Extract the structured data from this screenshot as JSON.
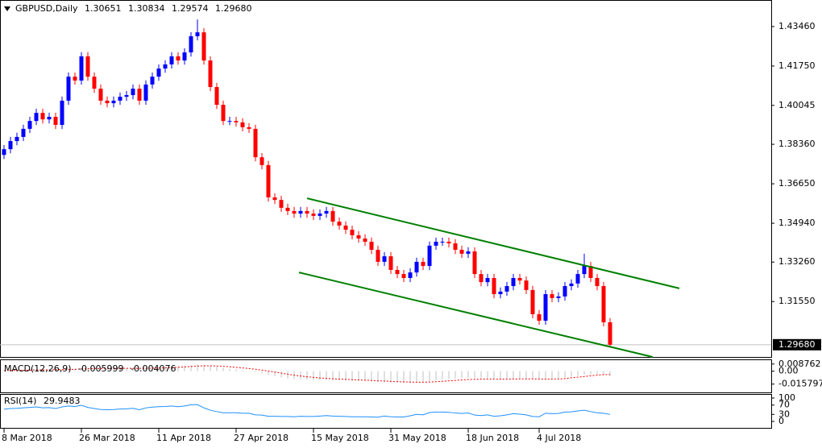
{
  "chart_data": [
    {
      "type": "candlestick",
      "title": "GBPUSD,Daily",
      "ohlc_label_close": "1.29680",
      "current_price": {
        "value": 1.2968,
        "label": "1.29680"
      },
      "up_color": "#0000ff",
      "down_color": "#ff0000",
      "categories": [
        "8 Mar 2018",
        null,
        null,
        null,
        null,
        null,
        null,
        null,
        null,
        null,
        null,
        null,
        "26 Mar 2018",
        null,
        null,
        null,
        null,
        null,
        null,
        null,
        null,
        null,
        null,
        null,
        "11 Apr 2018",
        null,
        null,
        null,
        null,
        null,
        null,
        null,
        null,
        null,
        null,
        null,
        "27 Apr 2018",
        null,
        null,
        null,
        null,
        null,
        null,
        null,
        null,
        null,
        null,
        null,
        "15 May 2018",
        null,
        null,
        null,
        null,
        null,
        null,
        null,
        null,
        null,
        null,
        null,
        "31 May 2018",
        null,
        null,
        null,
        null,
        null,
        null,
        null,
        null,
        null,
        null,
        null,
        "18 Jun 2018",
        null,
        null,
        null,
        null,
        null,
        null,
        null,
        null,
        null,
        null,
        "4 Jul 2018",
        null,
        null,
        null,
        null,
        null,
        null,
        null,
        null,
        null,
        null,
        null
      ],
      "open": [
        1.379,
        1.3815,
        1.385,
        1.3868,
        1.3903,
        1.3937,
        1.3972,
        1.3944,
        1.3955,
        1.392,
        1.4025,
        1.4129,
        1.4112,
        1.4217,
        1.4129,
        1.4077,
        1.4025,
        1.4014,
        1.4025,
        1.4042,
        1.4049,
        1.4077,
        1.4025,
        1.4095,
        1.4129,
        1.4164,
        1.4182,
        1.4217,
        1.4199,
        1.4234,
        1.4304,
        1.4321,
        1.4199,
        1.4084,
        1.4007,
        1.3937,
        1.3937,
        1.3931,
        1.391,
        1.3903,
        1.378,
        1.3746,
        1.3606,
        1.3595,
        1.3561,
        1.3547,
        1.3536,
        1.3547,
        1.3536,
        1.3526,
        1.3536,
        1.3547,
        1.3501,
        1.3484,
        1.3466,
        1.3442,
        1.3428,
        1.3414,
        1.3379,
        1.3327,
        1.3351,
        1.3292,
        1.3274,
        1.3257,
        1.3281,
        1.3327,
        1.3309,
        1.3397,
        1.3414,
        1.3414,
        1.3407,
        1.3379,
        1.3362,
        1.3372,
        1.3274,
        1.3239,
        1.3257,
        1.3187,
        1.3198,
        1.3222,
        1.3257,
        1.3246,
        1.3205,
        1.31,
        1.3072,
        1.3187,
        1.317,
        1.3177,
        1.3222,
        1.3233,
        1.3274,
        1.3309,
        1.3257,
        1.3222,
        1.30651
      ],
      "high": [
        1.3833,
        1.3868,
        1.3886,
        1.3921,
        1.3955,
        1.399,
        1.399,
        1.3973,
        1.3973,
        1.4043,
        1.4147,
        1.4147,
        1.4235,
        1.4235,
        1.4147,
        1.4095,
        1.4043,
        1.4043,
        1.406,
        1.4067,
        1.4095,
        1.4095,
        1.4113,
        1.4147,
        1.4182,
        1.42,
        1.4235,
        1.4235,
        1.4252,
        1.4322,
        1.4377,
        1.4339,
        1.4217,
        1.4102,
        1.4025,
        1.3955,
        1.3955,
        1.3949,
        1.3928,
        1.3921,
        1.3798,
        1.3764,
        1.3624,
        1.3613,
        1.3579,
        1.3565,
        1.3565,
        1.3565,
        1.3554,
        1.3554,
        1.3565,
        1.3565,
        1.3519,
        1.3502,
        1.3484,
        1.346,
        1.3446,
        1.3432,
        1.3397,
        1.3369,
        1.3369,
        1.331,
        1.3292,
        1.3299,
        1.3345,
        1.3345,
        1.3415,
        1.3432,
        1.3432,
        1.3432,
        1.3425,
        1.3397,
        1.339,
        1.339,
        1.3292,
        1.3275,
        1.3275,
        1.3216,
        1.324,
        1.3275,
        1.3275,
        1.3264,
        1.3223,
        1.3118,
        1.3205,
        1.3205,
        1.3195,
        1.324,
        1.3251,
        1.3292,
        1.3362,
        1.3327,
        1.3275,
        1.324,
        1.30834
      ],
      "low": [
        1.3772,
        1.3797,
        1.3832,
        1.385,
        1.3885,
        1.3919,
        1.3926,
        1.3926,
        1.3902,
        1.3902,
        1.4007,
        1.4094,
        1.4094,
        1.4111,
        1.4059,
        1.4007,
        1.3996,
        1.3996,
        1.4007,
        1.4024,
        1.4031,
        1.4007,
        1.4007,
        1.4077,
        1.4111,
        1.4146,
        1.4164,
        1.4181,
        1.4181,
        1.4216,
        1.4286,
        1.4181,
        1.4066,
        1.3989,
        1.3919,
        1.3919,
        1.3913,
        1.3892,
        1.3885,
        1.3762,
        1.3728,
        1.3588,
        1.3577,
        1.3543,
        1.3529,
        1.3518,
        1.3518,
        1.3518,
        1.3508,
        1.3508,
        1.3518,
        1.3483,
        1.3466,
        1.3448,
        1.3424,
        1.341,
        1.3396,
        1.3361,
        1.3309,
        1.3309,
        1.3274,
        1.3256,
        1.3239,
        1.3239,
        1.3263,
        1.3291,
        1.3291,
        1.3379,
        1.3396,
        1.3389,
        1.3361,
        1.3344,
        1.3344,
        1.3256,
        1.3221,
        1.3221,
        1.3169,
        1.3169,
        1.318,
        1.3204,
        1.3228,
        1.3187,
        1.3082,
        1.3054,
        1.3054,
        1.3152,
        1.3152,
        1.3159,
        1.3204,
        1.3215,
        1.3256,
        1.3239,
        1.3204,
        1.3047,
        1.29574
      ],
      "close": [
        1.3815,
        1.385,
        1.3868,
        1.3903,
        1.3937,
        1.3972,
        1.3944,
        1.3955,
        1.392,
        1.4025,
        1.4129,
        1.4112,
        1.4217,
        1.4129,
        1.4077,
        1.4025,
        1.4014,
        1.4025,
        1.4042,
        1.4049,
        1.4077,
        1.4025,
        1.4095,
        1.4129,
        1.4164,
        1.4182,
        1.4217,
        1.4199,
        1.4234,
        1.4304,
        1.4321,
        1.4199,
        1.4084,
        1.4007,
        1.3937,
        1.3937,
        1.3931,
        1.391,
        1.3903,
        1.378,
        1.3746,
        1.3606,
        1.3595,
        1.3561,
        1.3547,
        1.3536,
        1.3547,
        1.3536,
        1.3526,
        1.3536,
        1.3547,
        1.3501,
        1.3484,
        1.3466,
        1.3442,
        1.3428,
        1.3414,
        1.3379,
        1.3327,
        1.3351,
        1.3292,
        1.3274,
        1.3257,
        1.3281,
        1.3327,
        1.3309,
        1.3397,
        1.3414,
        1.3414,
        1.3407,
        1.3379,
        1.3362,
        1.3372,
        1.3274,
        1.3239,
        1.3257,
        1.3187,
        1.3198,
        1.3222,
        1.3257,
        1.3246,
        1.3205,
        1.31,
        1.3072,
        1.3187,
        1.317,
        1.3177,
        1.3222,
        1.3233,
        1.3274,
        1.3309,
        1.3257,
        1.3222,
        1.3065,
        1.2968
      ],
      "trendlines": [
        {
          "color": "#008000",
          "x": [
            47,
            104.75
          ],
          "y": [
            1.3602,
            1.3212
          ]
        },
        {
          "color": "#008000",
          "x": [
            45.75,
            100.6
          ],
          "y": [
            1.3281,
            1.2915
          ]
        }
      ],
      "ylim": [
        1.2915,
        1.4461
      ],
      "yticks": [
        {
          "value": 1.4346,
          "label": "1.43460"
        },
        {
          "value": 1.4175,
          "label": "1.41750"
        },
        {
          "value": 1.40045,
          "label": "1.40045"
        },
        {
          "value": 1.3836,
          "label": "1.38360"
        },
        {
          "value": 1.3665,
          "label": "1.36650"
        },
        {
          "value": 1.3494,
          "label": "1.34940"
        },
        {
          "value": 1.3326,
          "label": "1.33260"
        },
        {
          "value": 1.3155,
          "label": "1.31550"
        }
      ]
    },
    {
      "type": "macd",
      "title": "MACD(12,26,9)",
      "series": [
        {
          "color": "#c0c0c0",
          "style": "histogram",
          "values": [
            0.001,
            0.0012,
            0.0014,
            0.0016,
            0.0018,
            0.002,
            0.0021,
            0.0022,
            0.0022,
            0.0025,
            0.003,
            0.0034,
            0.004,
            0.0042,
            0.0042,
            0.004,
            0.0038,
            0.0036,
            0.0035,
            0.0035,
            0.0036,
            0.0035,
            0.0038,
            0.0042,
            0.0047,
            0.0052,
            0.0058,
            0.0062,
            0.0067,
            0.0075,
            0.0082,
            0.0078,
            0.0068,
            0.0056,
            0.0042,
            0.0031,
            0.0021,
            0.0012,
            0.0004,
            -0.0012,
            -0.0026,
            -0.0047,
            -0.0063,
            -0.0077,
            -0.0088,
            -0.0096,
            -0.0101,
            -0.0105,
            -0.0108,
            -0.0109,
            -0.0108,
            -0.011,
            -0.0112,
            -0.0115,
            -0.0118,
            -0.0121,
            -0.0124,
            -0.0128,
            -0.0134,
            -0.0135,
            -0.0139,
            -0.0142,
            -0.0144,
            -0.0143,
            -0.0138,
            -0.0134,
            -0.0123,
            -0.0112,
            -0.0102,
            -0.0094,
            -0.0089,
            -0.0085,
            -0.0081,
            -0.0085,
            -0.0089,
            -0.009,
            -0.0097,
            -0.0099,
            -0.0098,
            -0.0093,
            -0.009,
            -0.009,
            -0.0097,
            -0.0104,
            -0.0098,
            -0.0094,
            -0.009,
            -0.0083,
            -0.0068,
            -0.0058,
            -0.0045,
            -0.004,
            -0.0042,
            -0.005,
            -0.005999
          ]
        },
        {
          "color": "#ff0000",
          "style": "dotted",
          "values": [
            0.0008,
            0.0009,
            0.001,
            0.0011,
            0.0013,
            0.0014,
            0.0015,
            0.0017,
            0.0018,
            0.0019,
            0.0021,
            0.0023,
            0.0027,
            0.003,
            0.0032,
            0.0034,
            0.0035,
            0.0035,
            0.0035,
            0.0035,
            0.0035,
            0.0035,
            0.0036,
            0.0037,
            0.0039,
            0.0041,
            0.0045,
            0.0048,
            0.0052,
            0.0057,
            0.0062,
            0.0066,
            0.0066,
            0.0064,
            0.006,
            0.0054,
            0.0047,
            0.004,
            0.0033,
            0.0024,
            0.0014,
            0.0002,
            -0.0011,
            -0.0024,
            -0.0037,
            -0.0049,
            -0.0059,
            -0.0068,
            -0.0076,
            -0.0083,
            -0.0088,
            -0.0093,
            -0.0097,
            -0.01,
            -0.0104,
            -0.0107,
            -0.011,
            -0.0114,
            -0.0118,
            -0.0121,
            -0.0125,
            -0.0128,
            -0.0131,
            -0.0134,
            -0.0135,
            -0.0135,
            -0.0133,
            -0.0129,
            -0.0124,
            -0.0118,
            -0.0113,
            -0.0107,
            -0.0102,
            -0.0099,
            -0.0097,
            -0.0096,
            -0.0096,
            -0.0097,
            -0.0097,
            -0.0096,
            -0.0095,
            -0.0094,
            -0.0095,
            -0.0096,
            -0.0097,
            -0.0096,
            -0.0095,
            -0.0092,
            -0.008,
            -0.0073,
            -0.0066,
            -0.0056,
            -0.0048,
            -0.0043,
            -0.004076
          ]
        }
      ],
      "ylim": [
        -0.025,
        0.0125
      ],
      "yticks": [
        0.008762,
        {
          "value": 0,
          "label": "0.00"
        },
        -0.015797
      ]
    },
    {
      "type": "rsi",
      "title": "RSI(14)",
      "series": [
        {
          "color": "#1e90ff",
          "values": [
            52,
            55,
            56,
            58,
            60,
            62,
            58,
            59,
            55,
            62,
            66,
            64,
            69,
            60,
            55,
            51,
            50,
            51,
            53,
            54,
            56,
            50,
            58,
            61,
            63,
            64,
            66,
            63,
            66,
            71,
            72,
            58,
            48,
            42,
            37,
            37,
            37,
            35,
            35,
            28,
            27,
            22,
            22,
            21,
            21,
            20,
            22,
            21,
            21,
            23,
            25,
            23,
            22,
            21,
            20,
            20,
            20,
            19,
            18,
            23,
            20,
            19,
            19,
            24,
            30,
            28,
            38,
            40,
            40,
            39,
            36,
            34,
            36,
            27,
            25,
            28,
            22,
            24,
            28,
            33,
            31,
            28,
            21,
            20,
            35,
            33,
            34,
            40,
            41,
            45,
            48,
            42,
            37,
            35,
            29.9483
          ]
        }
      ],
      "ylim": [
        0,
        100
      ],
      "yticks": [
        100,
        70,
        30,
        0
      ]
    }
  ]
}
